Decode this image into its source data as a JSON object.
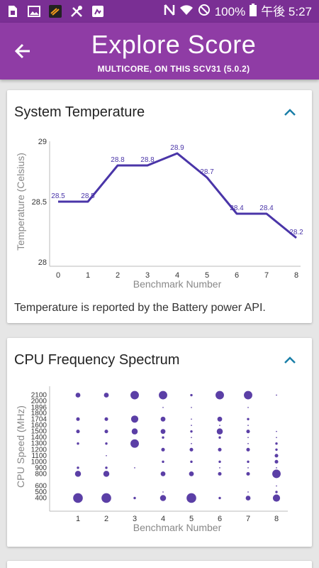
{
  "status_bar": {
    "battery_percent": "100%",
    "time": "午後 5:27",
    "left_icons": [
      "sim-card-icon",
      "image-icon",
      "app-icon",
      "tools-icon",
      "android-icon"
    ],
    "right_icons": [
      "nfc-icon",
      "wifi-icon",
      "do-not-disturb-icon",
      "battery-icon"
    ]
  },
  "header": {
    "title": "Explore Score",
    "subtitle": "MULTICORE, ON THIS SCV31 (5.0.2)",
    "colors": {
      "status_bar": "#7a2f94",
      "app_bar": "#8f3ca5",
      "accent": "#5b3fa6"
    }
  },
  "temperature_card": {
    "title": "System Temperature",
    "note": "Temperature is reported by the Battery power API."
  },
  "cpu_card": {
    "title": "CPU Frequency Spectrum"
  },
  "chart_data": [
    {
      "type": "line",
      "title": "",
      "xlabel": "Benchmark Number",
      "ylabel": "Temperature (Celsius)",
      "x": [
        0,
        1,
        2,
        3,
        4,
        5,
        6,
        7,
        8
      ],
      "y": [
        28.5,
        28.5,
        28.8,
        28.8,
        28.9,
        28.7,
        28.4,
        28.4,
        28.2
      ],
      "point_labels": [
        "28.5",
        "28.5",
        "28.8",
        "28.8",
        "28.9",
        "28.7",
        "28.4",
        "28.4",
        "28.2"
      ],
      "xticks": [
        "0",
        "1",
        "2",
        "3",
        "4",
        "5",
        "6",
        "7",
        "8"
      ],
      "yticks": [
        "28",
        "28.5",
        "29"
      ],
      "xlim": [
        0,
        8
      ],
      "ylim": [
        28,
        29
      ],
      "color": "#4a35a8"
    },
    {
      "type": "scatter",
      "title": "",
      "xlabel": "Benchmark Number",
      "ylabel": "CPU Speed (MHz)",
      "xticks": [
        "1",
        "2",
        "3",
        "4",
        "5",
        "6",
        "7",
        "8"
      ],
      "yticks": [
        "400",
        "500",
        "600",
        "800",
        "900",
        "1000",
        "1100",
        "1200",
        "1300",
        "1400",
        "1500",
        "1600",
        "1704",
        "1800",
        "1896",
        "2000",
        "2100"
      ],
      "ylim": [
        300,
        2200
      ],
      "color": "#5b3fa6",
      "points": [
        {
          "x": 1,
          "y": 2100,
          "size": 4
        },
        {
          "x": 1,
          "y": 1704,
          "size": 3
        },
        {
          "x": 1,
          "y": 1500,
          "size": 3
        },
        {
          "x": 1,
          "y": 1300,
          "size": 2
        },
        {
          "x": 1,
          "y": 900,
          "size": 2
        },
        {
          "x": 1,
          "y": 800,
          "size": 5
        },
        {
          "x": 1,
          "y": 400,
          "size": 8
        },
        {
          "x": 2,
          "y": 2100,
          "size": 4
        },
        {
          "x": 2,
          "y": 1704,
          "size": 3
        },
        {
          "x": 2,
          "y": 1500,
          "size": 3
        },
        {
          "x": 2,
          "y": 1300,
          "size": 2
        },
        {
          "x": 2,
          "y": 1100,
          "size": 1
        },
        {
          "x": 2,
          "y": 900,
          "size": 2
        },
        {
          "x": 2,
          "y": 800,
          "size": 5
        },
        {
          "x": 2,
          "y": 400,
          "size": 8
        },
        {
          "x": 3,
          "y": 2100,
          "size": 7
        },
        {
          "x": 3,
          "y": 1704,
          "size": 6
        },
        {
          "x": 3,
          "y": 1500,
          "size": 5
        },
        {
          "x": 3,
          "y": 1300,
          "size": 7
        },
        {
          "x": 3,
          "y": 900,
          "size": 1
        },
        {
          "x": 3,
          "y": 400,
          "size": 2
        },
        {
          "x": 4,
          "y": 2100,
          "size": 7
        },
        {
          "x": 4,
          "y": 1896,
          "size": 1
        },
        {
          "x": 4,
          "y": 1704,
          "size": 4
        },
        {
          "x": 4,
          "y": 1500,
          "size": 4
        },
        {
          "x": 4,
          "y": 1400,
          "size": 2
        },
        {
          "x": 4,
          "y": 1200,
          "size": 3
        },
        {
          "x": 4,
          "y": 1000,
          "size": 2
        },
        {
          "x": 4,
          "y": 800,
          "size": 4
        },
        {
          "x": 4,
          "y": 500,
          "size": 1
        },
        {
          "x": 4,
          "y": 400,
          "size": 5
        },
        {
          "x": 5,
          "y": 2100,
          "size": 2
        },
        {
          "x": 5,
          "y": 1896,
          "size": 1
        },
        {
          "x": 5,
          "y": 1704,
          "size": 1
        },
        {
          "x": 5,
          "y": 1600,
          "size": 1
        },
        {
          "x": 5,
          "y": 1500,
          "size": 2
        },
        {
          "x": 5,
          "y": 1400,
          "size": 1
        },
        {
          "x": 5,
          "y": 1300,
          "size": 1
        },
        {
          "x": 5,
          "y": 1200,
          "size": 3
        },
        {
          "x": 5,
          "y": 1000,
          "size": 2
        },
        {
          "x": 5,
          "y": 800,
          "size": 4
        },
        {
          "x": 5,
          "y": 400,
          "size": 8
        },
        {
          "x": 6,
          "y": 2100,
          "size": 7
        },
        {
          "x": 6,
          "y": 1704,
          "size": 4
        },
        {
          "x": 6,
          "y": 1600,
          "size": 1
        },
        {
          "x": 6,
          "y": 1500,
          "size": 5
        },
        {
          "x": 6,
          "y": 1400,
          "size": 2
        },
        {
          "x": 6,
          "y": 1200,
          "size": 3
        },
        {
          "x": 6,
          "y": 1000,
          "size": 2
        },
        {
          "x": 6,
          "y": 900,
          "size": 1
        },
        {
          "x": 6,
          "y": 800,
          "size": 3
        },
        {
          "x": 6,
          "y": 400,
          "size": 2
        },
        {
          "x": 7,
          "y": 2100,
          "size": 7
        },
        {
          "x": 7,
          "y": 1896,
          "size": 1
        },
        {
          "x": 7,
          "y": 1704,
          "size": 2
        },
        {
          "x": 7,
          "y": 1600,
          "size": 1
        },
        {
          "x": 7,
          "y": 1500,
          "size": 3
        },
        {
          "x": 7,
          "y": 1400,
          "size": 1
        },
        {
          "x": 7,
          "y": 1300,
          "size": 1
        },
        {
          "x": 7,
          "y": 1200,
          "size": 3
        },
        {
          "x": 7,
          "y": 1000,
          "size": 2
        },
        {
          "x": 7,
          "y": 900,
          "size": 1
        },
        {
          "x": 7,
          "y": 800,
          "size": 3
        },
        {
          "x": 7,
          "y": 500,
          "size": 1
        },
        {
          "x": 7,
          "y": 400,
          "size": 4
        },
        {
          "x": 8,
          "y": 2100,
          "size": 1
        },
        {
          "x": 8,
          "y": 1500,
          "size": 1
        },
        {
          "x": 8,
          "y": 1400,
          "size": 1
        },
        {
          "x": 8,
          "y": 1300,
          "size": 2
        },
        {
          "x": 8,
          "y": 1200,
          "size": 2
        },
        {
          "x": 8,
          "y": 1100,
          "size": 3
        },
        {
          "x": 8,
          "y": 1000,
          "size": 3
        },
        {
          "x": 8,
          "y": 900,
          "size": 1
        },
        {
          "x": 8,
          "y": 800,
          "size": 7
        },
        {
          "x": 8,
          "y": 600,
          "size": 1
        },
        {
          "x": 8,
          "y": 500,
          "size": 2
        },
        {
          "x": 8,
          "y": 400,
          "size": 6
        }
      ]
    }
  ]
}
